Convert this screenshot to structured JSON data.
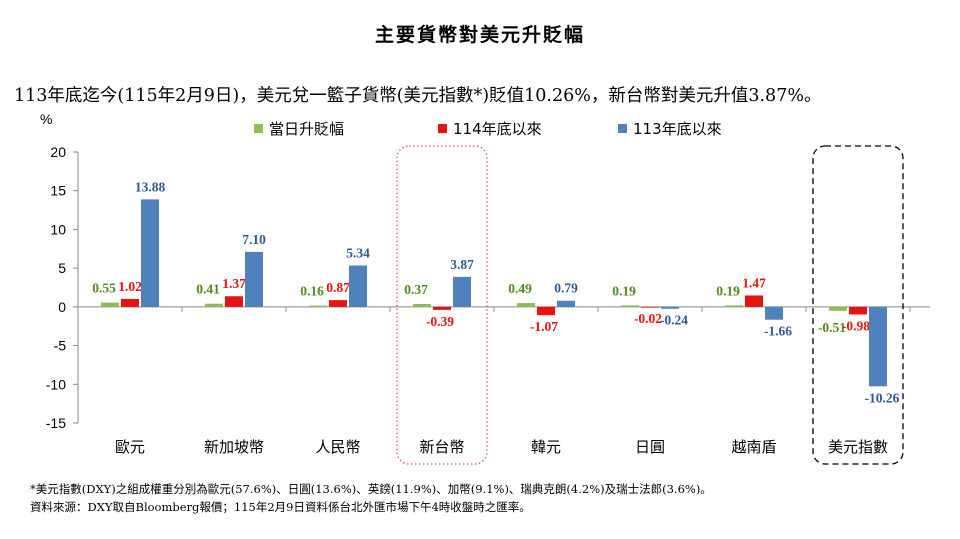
{
  "page": {
    "title": "主要貨幣對美元升貶幅",
    "subtitle": "113年底迄今(115年2月9日)，美元兌一籃子貨幣(美元指數*)貶值10.26%，新台幣對美元升值3.87%。",
    "notes": [
      "*美元指數(DXY)之組成權重分別為歐元(57.6%)、日圓(13.6%)、英鎊(11.9%)、加幣(9.1%)、瑞典克朗(4.2%)及瑞士法郎(3.6%)。",
      "資料來源：DXY取自Bloomberg報價；115年2月9日資料係台北外匯市場下午4時收盤時之匯率。"
    ]
  },
  "chart_data": {
    "type": "bar",
    "title": "主要貨幣對美元升貶幅",
    "ylabel": "%",
    "xlabel": "",
    "ylim": [
      -15,
      20
    ],
    "yticks": [
      20,
      15,
      10,
      5,
      0,
      -5,
      -10,
      -15
    ],
    "ytick_labels": [
      "20",
      "15",
      "10",
      "5",
      "0",
      "-5",
      "-10",
      "-15"
    ],
    "legend_position": "top",
    "categories": [
      "歐元",
      "新加坡幣",
      "人民幣",
      "新台幣",
      "韓元",
      "日圓",
      "越南盾",
      "美元指數"
    ],
    "series": [
      {
        "name": "當日升貶幅",
        "color": "#8cc152",
        "values": [
          0.55,
          0.41,
          0.16,
          0.37,
          0.49,
          0.19,
          0.19,
          -0.51
        ],
        "labels": [
          "0.55",
          "0.41",
          "0.16",
          "0.37",
          "0.49",
          "0.19",
          "0.19",
          "-0.51"
        ],
        "label_color": "#4e8a1e"
      },
      {
        "name": "114年底以來",
        "color": "#e8130f",
        "values": [
          1.02,
          1.37,
          0.87,
          -0.39,
          -1.07,
          -0.02,
          1.47,
          -0.98
        ],
        "labels": [
          "1.02",
          "1.37",
          "0.87",
          "-0.39",
          "-1.07",
          "-0.02",
          "1.47",
          "-0.98"
        ],
        "label_color": "#e8130f"
      },
      {
        "name": "113年底以來",
        "color": "#4f81bd",
        "values": [
          13.88,
          7.1,
          5.34,
          3.87,
          0.79,
          -0.24,
          -1.66,
          -10.26
        ],
        "labels": [
          "13.88",
          "7.10",
          "5.34",
          "3.87",
          "0.79",
          "-0.24",
          "-1.66",
          "-10.26"
        ],
        "label_color": "#2e5a96"
      }
    ],
    "highlights": [
      {
        "category": "新台幣",
        "style": "dotted",
        "color": "#e05050"
      },
      {
        "category": "美元指數",
        "style": "dashed",
        "color": "#000000"
      }
    ]
  }
}
